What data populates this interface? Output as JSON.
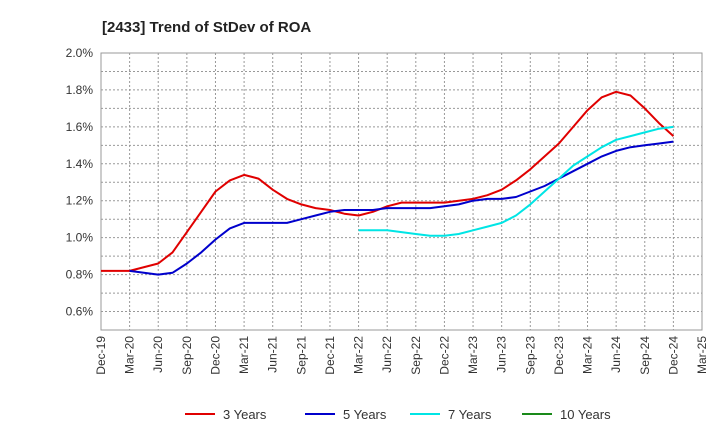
{
  "chart_data": {
    "type": "line",
    "title": "[2433]  Trend of StDev of ROA",
    "xlabel": "",
    "ylabel": "",
    "x_ticks": [
      "Dec-19",
      "Mar-20",
      "Jun-20",
      "Sep-20",
      "Dec-20",
      "Mar-21",
      "Jun-21",
      "Sep-21",
      "Dec-21",
      "Mar-22",
      "Jun-22",
      "Sep-22",
      "Dec-22",
      "Mar-23",
      "Jun-23",
      "Sep-23",
      "Dec-23",
      "Mar-24",
      "Jun-24",
      "Sep-24",
      "Dec-24",
      "Mar-25"
    ],
    "y_ticks": [
      "0.6%",
      "0.8%",
      "1.0%",
      "1.2%",
      "1.4%",
      "1.6%",
      "1.8%",
      "2.0%"
    ],
    "ylim": [
      0.5,
      2.0
    ],
    "grid": true,
    "legend_position": "bottom",
    "series": [
      {
        "name": "3 Years",
        "color": "#e00000",
        "points": [
          [
            0,
            0.82
          ],
          [
            1,
            0.82
          ],
          [
            2,
            0.86
          ],
          [
            2.5,
            0.92
          ],
          [
            3,
            1.03
          ],
          [
            3.5,
            1.14
          ],
          [
            4,
            1.25
          ],
          [
            4.5,
            1.31
          ],
          [
            5,
            1.34
          ],
          [
            5.5,
            1.32
          ],
          [
            6,
            1.26
          ],
          [
            6.5,
            1.21
          ],
          [
            7,
            1.18
          ],
          [
            7.5,
            1.16
          ],
          [
            8,
            1.15
          ],
          [
            8.5,
            1.13
          ],
          [
            9,
            1.12
          ],
          [
            9.5,
            1.14
          ],
          [
            10,
            1.17
          ],
          [
            10.5,
            1.19
          ],
          [
            11,
            1.19
          ],
          [
            11.5,
            1.19
          ],
          [
            12,
            1.19
          ],
          [
            12.5,
            1.2
          ],
          [
            13,
            1.21
          ],
          [
            13.5,
            1.23
          ],
          [
            14,
            1.26
          ],
          [
            14.5,
            1.31
          ],
          [
            15,
            1.37
          ],
          [
            15.5,
            1.44
          ],
          [
            16,
            1.51
          ],
          [
            16.5,
            1.6
          ],
          [
            17,
            1.69
          ],
          [
            17.5,
            1.76
          ],
          [
            18,
            1.79
          ],
          [
            18.5,
            1.77
          ],
          [
            19,
            1.7
          ],
          [
            19.5,
            1.62
          ],
          [
            20,
            1.55
          ]
        ]
      },
      {
        "name": "5 Years",
        "color": "#0000cc",
        "points": [
          [
            1,
            0.82
          ],
          [
            1.5,
            0.81
          ],
          [
            2,
            0.8
          ],
          [
            2.5,
            0.81
          ],
          [
            3,
            0.86
          ],
          [
            3.5,
            0.92
          ],
          [
            4,
            0.99
          ],
          [
            4.5,
            1.05
          ],
          [
            5,
            1.08
          ],
          [
            5.5,
            1.08
          ],
          [
            6,
            1.08
          ],
          [
            6.5,
            1.08
          ],
          [
            7,
            1.1
          ],
          [
            7.5,
            1.12
          ],
          [
            8,
            1.14
          ],
          [
            8.5,
            1.15
          ],
          [
            9,
            1.15
          ],
          [
            9.5,
            1.15
          ],
          [
            10,
            1.16
          ],
          [
            10.5,
            1.16
          ],
          [
            11,
            1.16
          ],
          [
            11.5,
            1.16
          ],
          [
            12,
            1.17
          ],
          [
            12.5,
            1.18
          ],
          [
            13,
            1.2
          ],
          [
            13.5,
            1.21
          ],
          [
            14,
            1.21
          ],
          [
            14.5,
            1.22
          ],
          [
            15,
            1.25
          ],
          [
            15.5,
            1.28
          ],
          [
            16,
            1.32
          ],
          [
            16.5,
            1.36
          ],
          [
            17,
            1.4
          ],
          [
            17.5,
            1.44
          ],
          [
            18,
            1.47
          ],
          [
            18.5,
            1.49
          ],
          [
            19,
            1.5
          ],
          [
            19.5,
            1.51
          ],
          [
            20,
            1.52
          ]
        ]
      },
      {
        "name": "7 Years",
        "color": "#00e5e5",
        "points": [
          [
            9,
            1.04
          ],
          [
            9.5,
            1.04
          ],
          [
            10,
            1.04
          ],
          [
            10.5,
            1.03
          ],
          [
            11,
            1.02
          ],
          [
            11.5,
            1.01
          ],
          [
            12,
            1.01
          ],
          [
            12.5,
            1.02
          ],
          [
            13,
            1.04
          ],
          [
            13.5,
            1.06
          ],
          [
            14,
            1.08
          ],
          [
            14.5,
            1.12
          ],
          [
            15,
            1.18
          ],
          [
            15.5,
            1.25
          ],
          [
            16,
            1.32
          ],
          [
            16.5,
            1.39
          ],
          [
            17,
            1.44
          ],
          [
            17.5,
            1.49
          ],
          [
            18,
            1.53
          ],
          [
            18.5,
            1.55
          ],
          [
            19,
            1.57
          ],
          [
            19.5,
            1.59
          ],
          [
            20,
            1.6
          ]
        ]
      },
      {
        "name": "10 Years",
        "color": "#1a8a1a",
        "points": []
      }
    ]
  }
}
